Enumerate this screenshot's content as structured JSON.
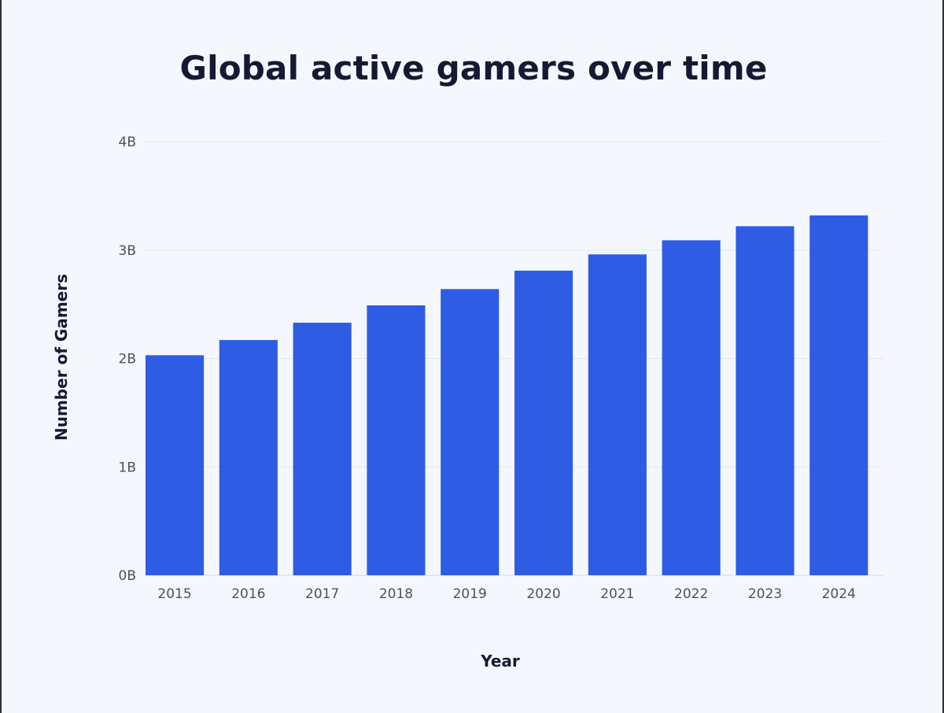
{
  "chart_data": {
    "type": "bar",
    "title": "Global active gamers over time",
    "xlabel": "Year",
    "ylabel": "Number of Gamers",
    "categories": [
      "2015",
      "2016",
      "2017",
      "2018",
      "2019",
      "2020",
      "2021",
      "2022",
      "2023",
      "2024"
    ],
    "values": [
      2.03,
      2.17,
      2.33,
      2.49,
      2.64,
      2.81,
      2.96,
      3.09,
      3.22,
      3.32
    ],
    "value_unit": "billions",
    "ylim": [
      0,
      4
    ],
    "yticks": [
      0,
      1,
      2,
      3,
      4
    ],
    "ytick_labels": [
      "0B",
      "1B",
      "2B",
      "3B",
      "4B"
    ],
    "grid": true,
    "legend": "none",
    "colors": {
      "bar": "#2e5ce4",
      "background": "#f4f8fe",
      "grid": "#e1e7ef",
      "title": "#141a33",
      "tick_text": "#4a5163"
    }
  }
}
